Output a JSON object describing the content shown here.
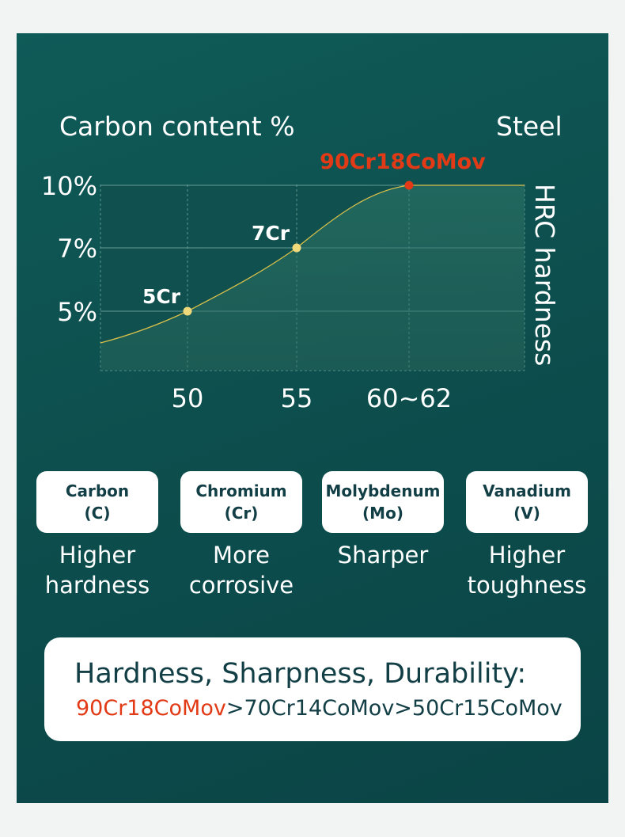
{
  "chart_data": {
    "type": "line",
    "ylabel": "Carbon content %",
    "xlabel": "HRC hardness",
    "series_label": "Steel",
    "x_ticks": [
      "50",
      "55",
      "60~62"
    ],
    "y_ticks": [
      "5%",
      "7%",
      "10%"
    ],
    "points": [
      {
        "label": "5Cr",
        "x": "50",
        "y": "5%",
        "color": "#f0d97a"
      },
      {
        "label": "7Cr",
        "x": "55",
        "y": "7%",
        "color": "#f0d97a"
      },
      {
        "label": "90Cr18CoMov",
        "x": "60~62",
        "y": "10%",
        "color": "#e23a16"
      }
    ],
    "line_color": "#d9c04a"
  },
  "elements": [
    {
      "name": "Carbon",
      "symbol": "(C)",
      "effect": [
        "Higher",
        "hardness"
      ]
    },
    {
      "name": "Chromium",
      "symbol": "(Cr)",
      "effect": [
        "More",
        "corrosive"
      ]
    },
    {
      "name": "Molybdenum",
      "symbol": "(Mo)",
      "effect": [
        "Sharper"
      ]
    },
    {
      "name": "Vanadium",
      "symbol": "(V)",
      "effect": [
        "Higher",
        "toughness"
      ]
    }
  ],
  "summary": {
    "title": "Hardness, Sharpness, Durability:",
    "highlight": "90Cr18CoMov",
    "rest": ">70Cr14CoMov>50Cr15CoMov",
    "highlight_color": "#e23a16"
  }
}
